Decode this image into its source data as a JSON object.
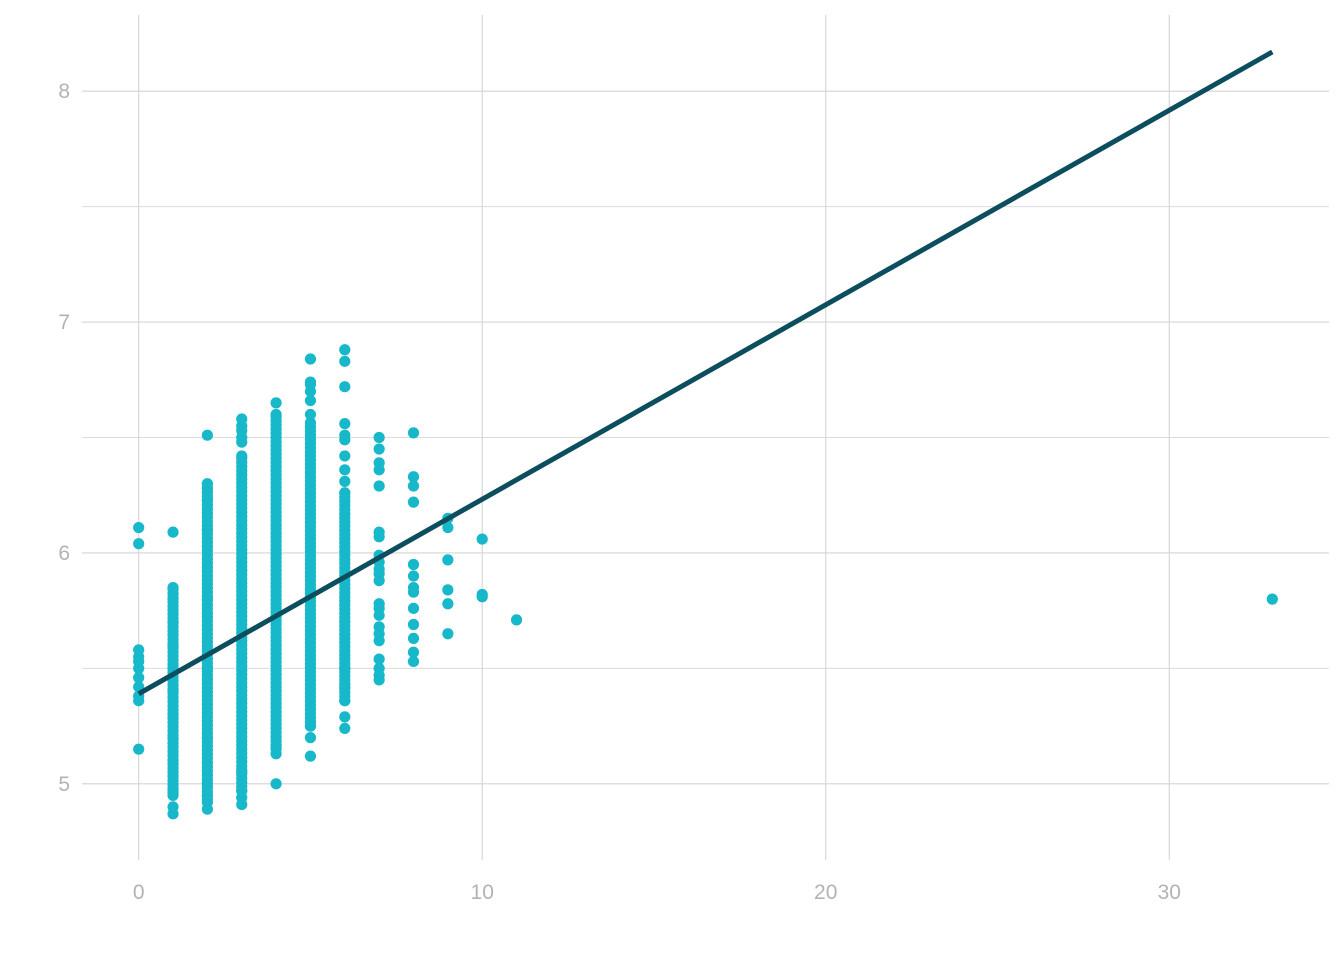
{
  "chart_data": {
    "type": "scatter",
    "title": "",
    "xlabel": "",
    "ylabel": "",
    "xlim": [
      -1.65,
      34.65
    ],
    "ylim": [
      4.67,
      8.33
    ],
    "x_ticks": [
      0,
      10,
      20,
      30
    ],
    "x_tick_labels": [
      "0",
      "10",
      "20",
      "30"
    ],
    "x_minor_ticks": [],
    "y_ticks": [
      5,
      6,
      7,
      8
    ],
    "y_tick_labels": [
      "5",
      "6",
      "7",
      "8"
    ],
    "y_minor_ticks": [
      5.5,
      6.5,
      7.5
    ],
    "grid": true,
    "legend": "none",
    "colors": {
      "points": "#17b8c9",
      "fit_line": "#0c4e5e",
      "grid": "#d4d4d4",
      "tick_text": "#b3b3b3"
    },
    "point_columns": [
      {
        "x": 0,
        "y": [
          5.15,
          5.36,
          5.38,
          5.42,
          5.46,
          5.5,
          5.53,
          5.55,
          5.58,
          6.04,
          6.11
        ]
      },
      {
        "x": 1,
        "dense_range": [
          4.96,
          5.85
        ],
        "y": [
          4.87,
          4.9,
          4.95,
          4.97,
          5.05,
          5.1,
          5.2,
          5.3,
          5.4,
          5.5,
          5.6,
          5.7,
          5.8,
          5.85,
          6.09
        ]
      },
      {
        "x": 2,
        "dense_range": [
          4.93,
          6.3
        ],
        "y": [
          4.89,
          4.92,
          4.95,
          5.0,
          5.2,
          5.5,
          5.8,
          6.1,
          6.23,
          6.28,
          6.3,
          6.51
        ]
      },
      {
        "x": 3,
        "dense_range": [
          4.97,
          6.42
        ],
        "y": [
          4.91,
          4.94,
          4.97,
          5.05,
          6.42,
          6.48,
          6.5,
          6.53,
          6.55,
          6.58
        ]
      },
      {
        "x": 4,
        "dense_range": [
          5.15,
          6.6
        ],
        "y": [
          5.0,
          5.13,
          5.16,
          6.6,
          6.65
        ]
      },
      {
        "x": 5,
        "dense_range": [
          5.25,
          6.58
        ],
        "y": [
          5.12,
          5.2,
          5.25,
          6.6,
          6.66,
          6.7,
          6.73,
          6.74,
          6.84
        ]
      },
      {
        "x": 6,
        "dense_range": [
          5.36,
          6.26
        ],
        "y": [
          5.24,
          5.29,
          5.36,
          5.42,
          5.5,
          6.26,
          6.31,
          6.36,
          6.42,
          6.49,
          6.51,
          6.56,
          6.72,
          6.83,
          6.88
        ]
      },
      {
        "x": 7,
        "y": [
          5.45,
          5.47,
          5.5,
          5.54,
          5.62,
          5.65,
          5.68,
          5.73,
          5.76,
          5.78,
          5.88,
          5.91,
          5.93,
          5.96,
          5.99,
          6.07,
          6.09,
          6.29,
          6.36,
          6.39,
          6.45,
          6.5
        ]
      },
      {
        "x": 8,
        "y": [
          5.53,
          5.57,
          5.63,
          5.69,
          5.76,
          5.83,
          5.85,
          5.9,
          5.95,
          6.22,
          6.29,
          6.33,
          6.52
        ]
      },
      {
        "x": 9,
        "y": [
          5.65,
          5.78,
          5.84,
          5.97,
          6.11,
          6.15
        ]
      },
      {
        "x": 10,
        "y": [
          5.81,
          5.82,
          6.06
        ]
      },
      {
        "x": 11,
        "y": [
          5.71
        ]
      },
      {
        "x": 33,
        "y": [
          5.8
        ]
      }
    ],
    "fit_line": {
      "x": [
        0,
        33
      ],
      "y": [
        5.39,
        8.17
      ]
    }
  }
}
